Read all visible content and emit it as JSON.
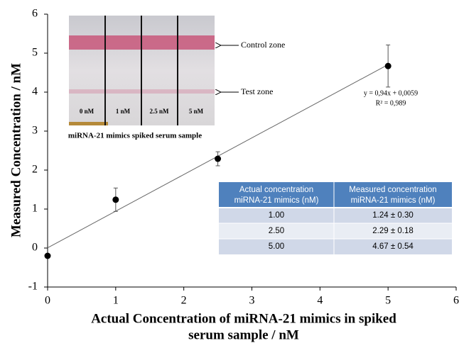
{
  "chart_data": {
    "type": "scatter",
    "x_label": [
      "Actual Concentration of  miRNA-21 mimics in spiked",
      "serum sample / nM"
    ],
    "y_label": "Measured Concentration / nM",
    "x": [
      0,
      1,
      2.5,
      5
    ],
    "values": [
      -0.2,
      1.24,
      2.29,
      4.67
    ],
    "errors": [
      null,
      0.3,
      0.18,
      0.54
    ],
    "color": "#000000",
    "xlim": [
      0,
      6
    ],
    "xticks": [
      0,
      1,
      2,
      3,
      4,
      5,
      6
    ],
    "ylim": [
      -1,
      6
    ],
    "yticks": [
      -1,
      0,
      1,
      2,
      3,
      4,
      5,
      6
    ],
    "trendline": {
      "slope": 0.94,
      "intercept": 0.0059,
      "x_range": [
        0,
        5
      ],
      "equation": "y = 0,94x + 0,0059",
      "r2": "R² = 0,989"
    }
  },
  "inset_image": {
    "lanes": [
      "0 nM",
      "1 nM",
      "2.5 nM",
      "5 nM"
    ],
    "control_label": "Control zone",
    "test_label": "Test zone",
    "caption": "miRNA-21 mimics spiked  serum sample"
  },
  "table": {
    "columns": [
      [
        "Actual concentration",
        "miRNA-21 mimics (nM)"
      ],
      [
        "Measured concentration",
        "miRNA-21 mimics (nM)"
      ]
    ],
    "rows": [
      [
        "1.00",
        "1.24 ± 0.30"
      ],
      [
        "2.50",
        "2.29 ± 0.18"
      ],
      [
        "5.00",
        "4.67 ± 0.54"
      ]
    ]
  }
}
